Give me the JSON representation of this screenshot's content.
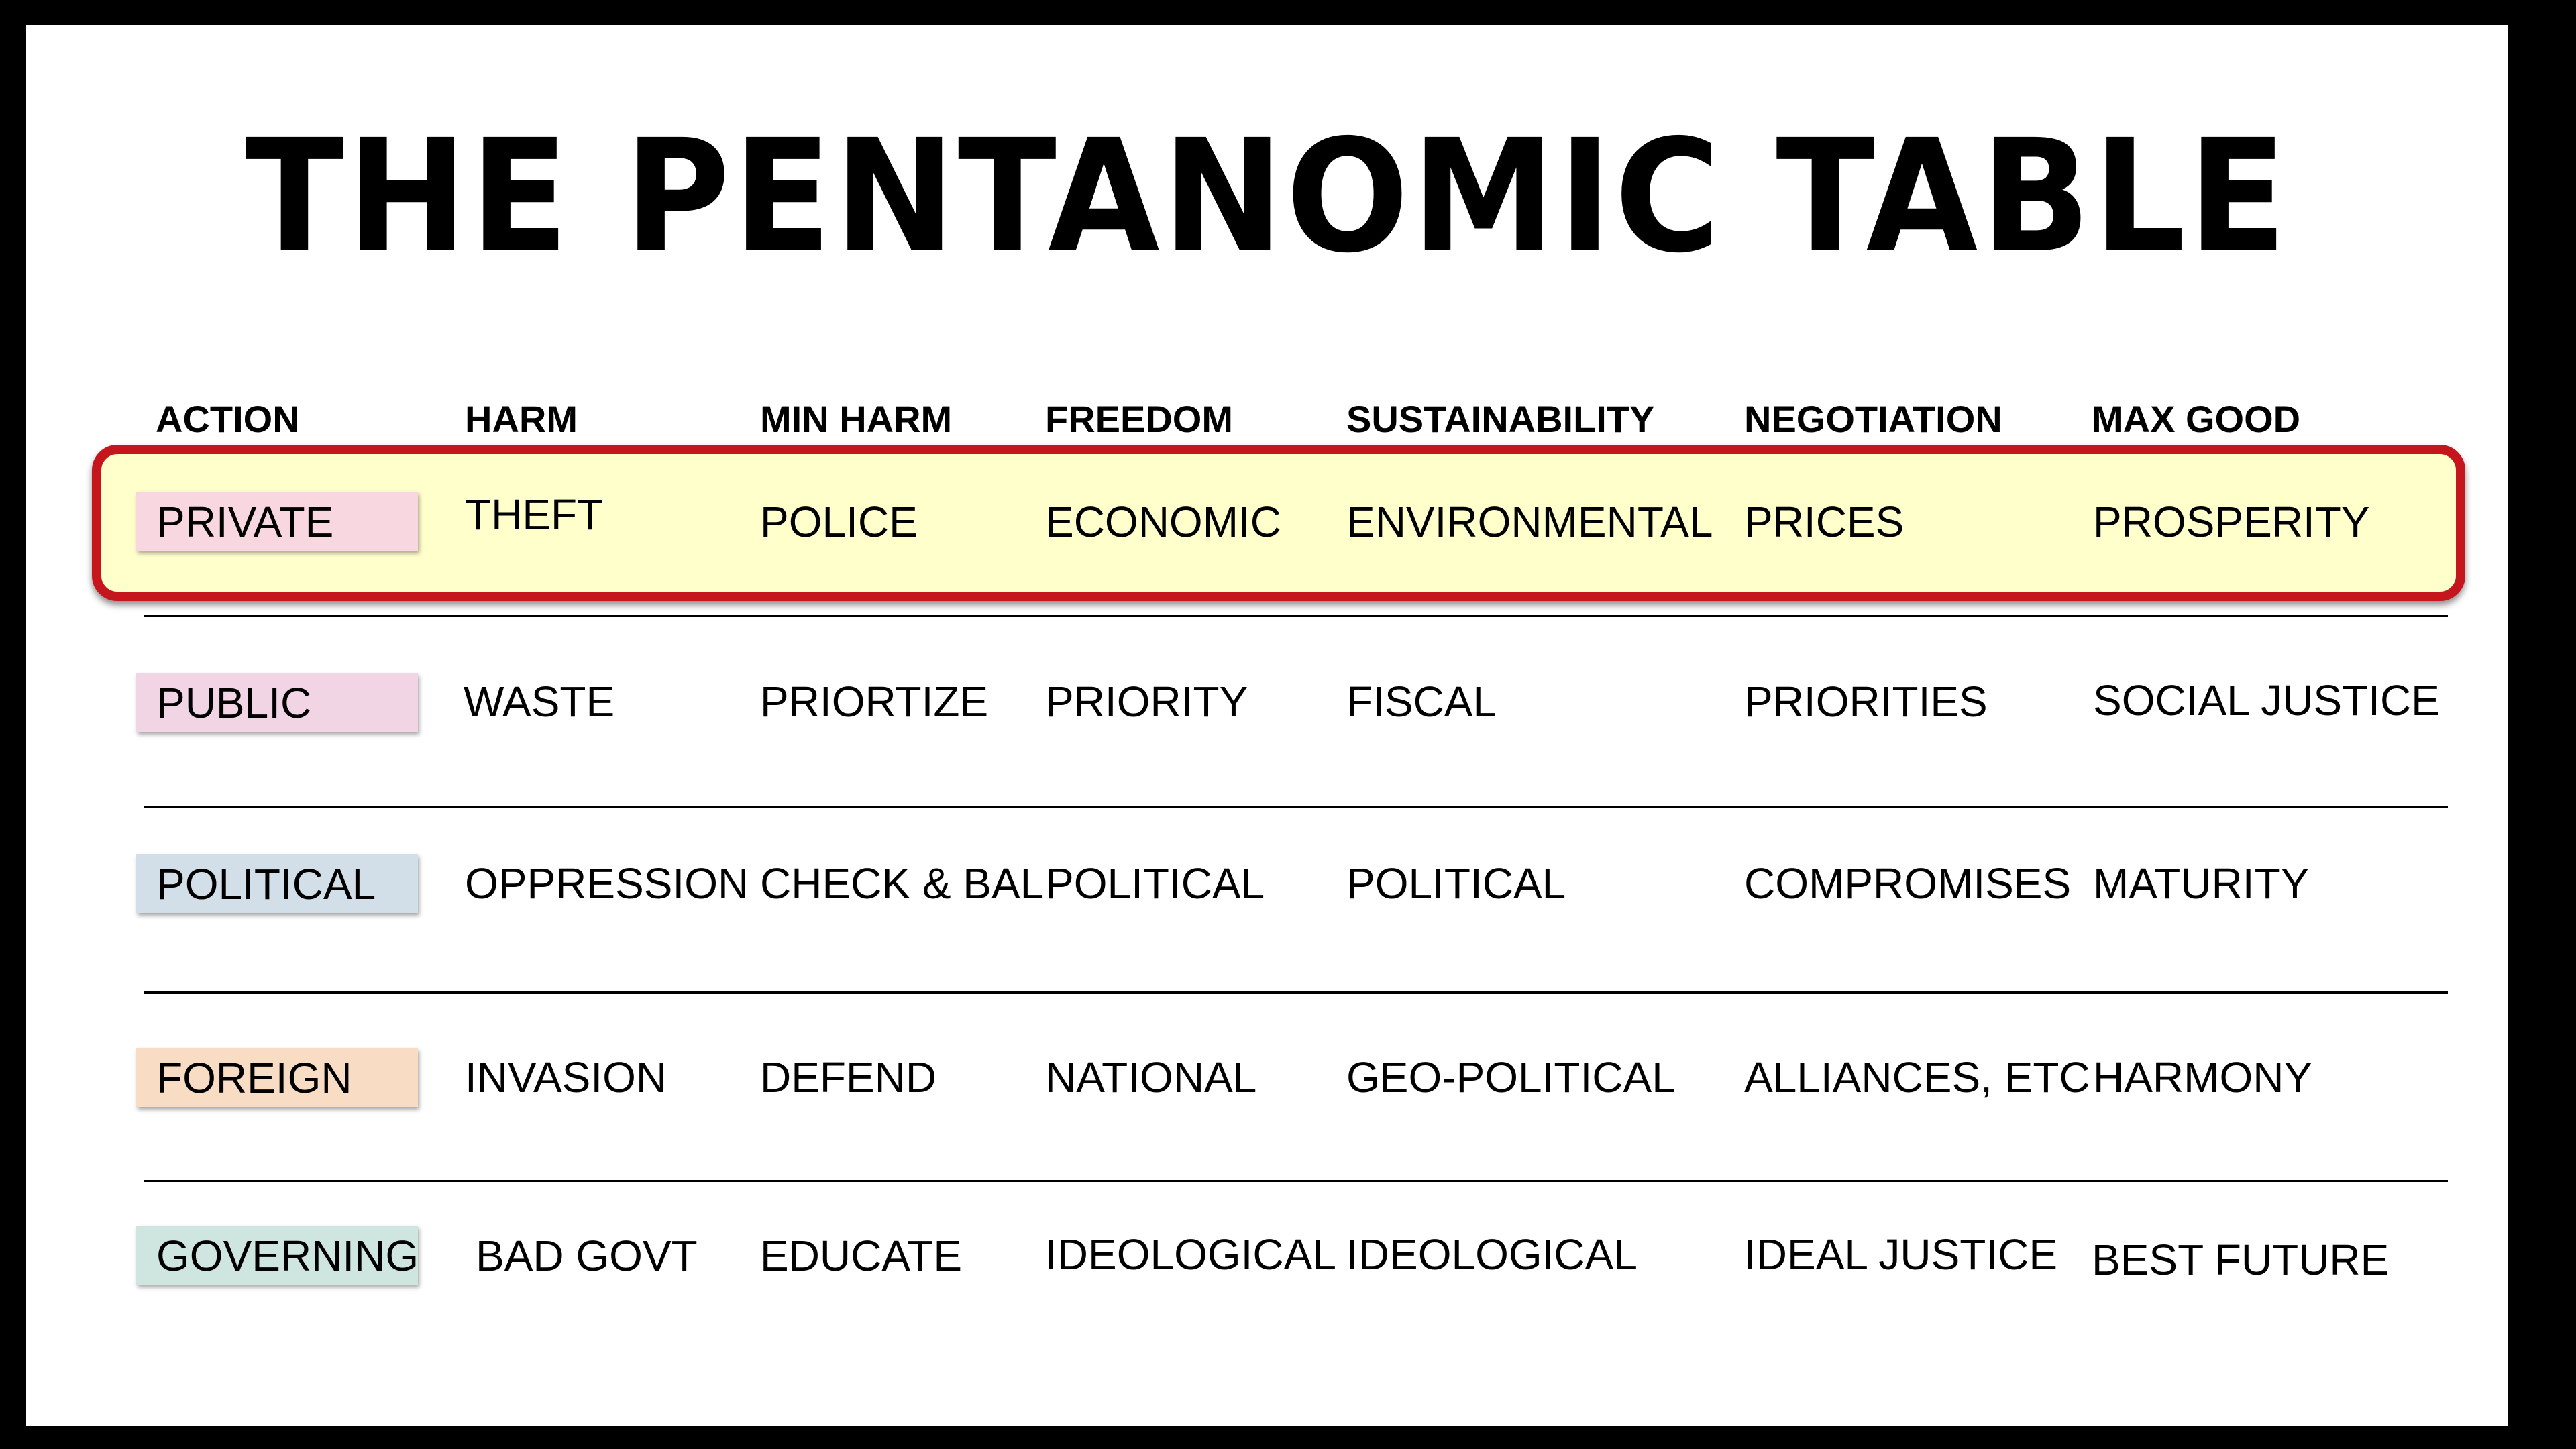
{
  "title": "THE PENTANOMIC TABLE",
  "colors": {
    "highlight_fill": "#ffffcc",
    "highlight_border": "#c4161c",
    "private": "#f8d7e0",
    "public": "#f2d5e5",
    "political": "#d3dfe8",
    "foreign": "#f9dcc4",
    "governing": "#cfe6e0"
  },
  "headers": [
    "ACTION",
    "HARM",
    "MIN HARM",
    "FREEDOM",
    "SUSTAINABILITY",
    "NEGOTIATION",
    "MAX GOOD"
  ],
  "rows": [
    {
      "action": "PRIVATE",
      "harm": "THEFT",
      "min_harm": "POLICE",
      "freedom": "ECONOMIC",
      "sustainability": "ENVIRONMENTAL",
      "negotiation": "PRICES",
      "max_good": "PROSPERITY"
    },
    {
      "action": "PUBLIC",
      "harm": "WASTE",
      "min_harm": "PRIORTIZE",
      "freedom": "PRIORITY",
      "sustainability": "FISCAL",
      "negotiation": "PRIORITIES",
      "max_good": "SOCIAL JUSTICE"
    },
    {
      "action": "POLITICAL",
      "harm": "OPPRESSION",
      "min_harm": "CHECK & BAL",
      "freedom": "POLITICAL",
      "sustainability": "POLITICAL",
      "negotiation": "COMPROMISES",
      "max_good": "MATURITY"
    },
    {
      "action": "FOREIGN",
      "harm": "INVASION",
      "min_harm": "DEFEND",
      "freedom": "NATIONAL",
      "sustainability": "GEO-POLITICAL",
      "negotiation": "ALLIANCES, ETC",
      "max_good": "HARMONY"
    },
    {
      "action": "GOVERNING",
      "harm": "BAD GOVT",
      "min_harm": "EDUCATE",
      "freedom": "IDEOLOGICAL",
      "sustainability": "IDEOLOGICAL",
      "negotiation": "IDEAL JUSTICE",
      "max_good": "BEST FUTURE"
    }
  ]
}
